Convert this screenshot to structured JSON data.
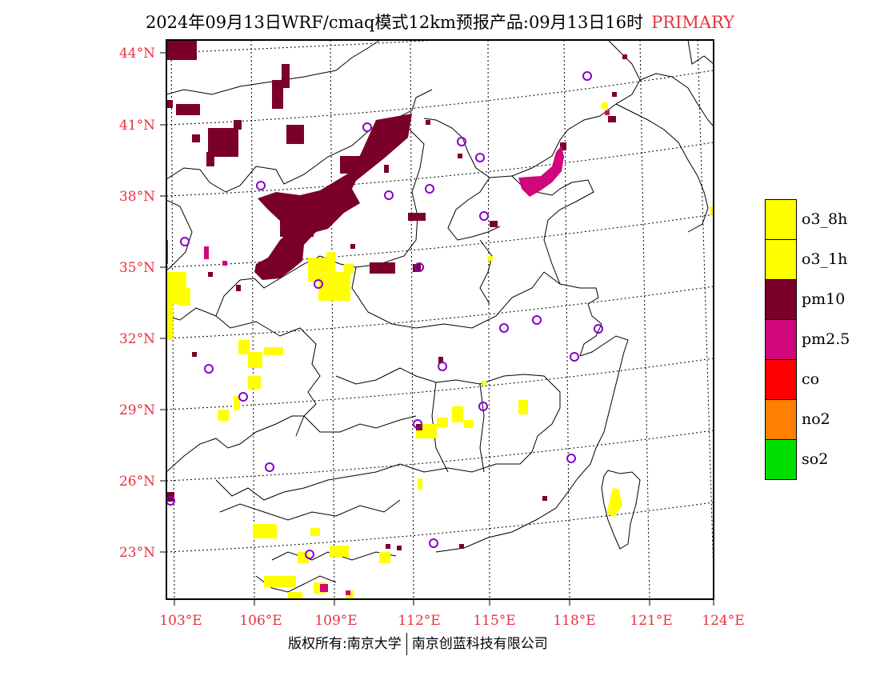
{
  "title": {
    "main": "2024年09月13日WRF/cmaq模式12km预报产品:09月13日16时",
    "tag": "PRIMARY",
    "tag_color": "#e8333c"
  },
  "axes": {
    "lat_labels": [
      "44°N",
      "41°N",
      "38°N",
      "35°N",
      "32°N",
      "29°N",
      "26°N",
      "23°N"
    ],
    "lon_labels": [
      "103°E",
      "106°E",
      "109°E",
      "112°E",
      "115°E",
      "118°E",
      "121°E",
      "124°E"
    ],
    "label_color": "#e8333c"
  },
  "legend": [
    {
      "label": "o3_8h",
      "color": "#ffff00"
    },
    {
      "label": "o3_1h",
      "color": "#ffff00"
    },
    {
      "label": "pm10",
      "color": "#7a0028"
    },
    {
      "label": "pm2.5",
      "color": "#d0067a"
    },
    {
      "label": "co",
      "color": "#ff0000"
    },
    {
      "label": "no2",
      "color": "#ff7f00"
    },
    {
      "label": "so2",
      "color": "#00e000"
    }
  ],
  "footer": {
    "left": "版权所有:南京大学",
    "right": "南京创蓝科技有限公司"
  },
  "markers": {
    "icon": "station-circle-icon",
    "color": "#8800cc"
  }
}
